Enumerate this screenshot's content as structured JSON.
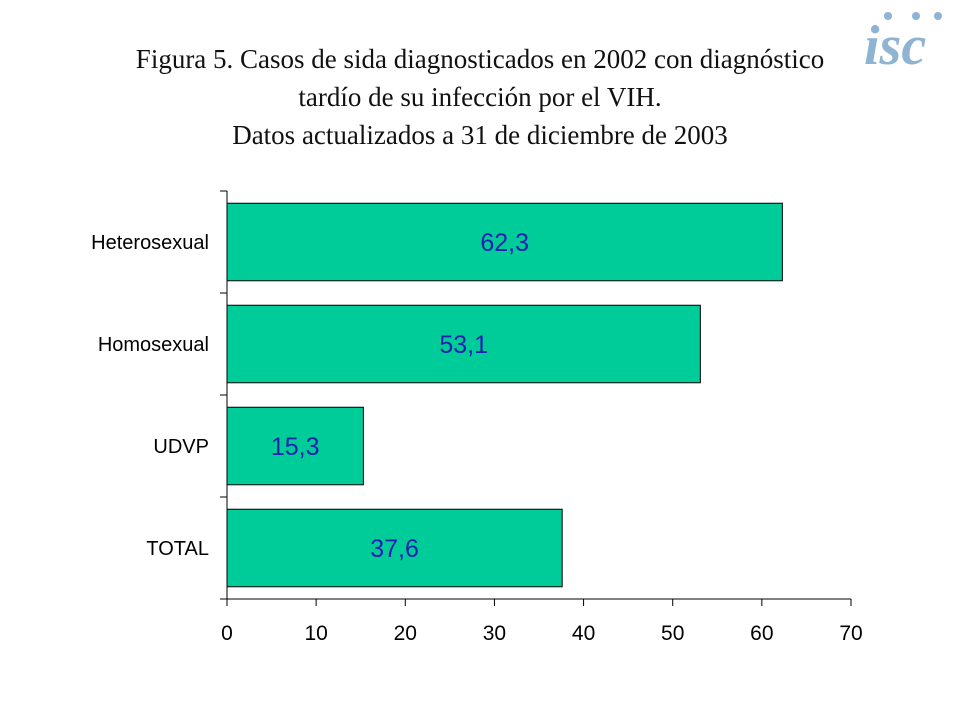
{
  "title_lines": [
    "Figura 5. Casos de sida diagnosticados en 2002 con diagnóstico",
    "tardío de su infección por el VIH.",
    "Datos actualizados a 31 de diciembre de 2003"
  ],
  "logo": {
    "text": "isc",
    "color": "#8fb3d3"
  },
  "colors": {
    "bar": "#00cc99",
    "bar_stroke": "#000000",
    "data_label": "#1f1fb0"
  },
  "chart_data": {
    "type": "bar",
    "orientation": "horizontal",
    "categories": [
      "Heterosexual",
      "Homosexual",
      "UDVP",
      "TOTAL"
    ],
    "values": [
      62.3,
      53.1,
      15.3,
      37.6
    ],
    "data_labels": [
      "62,3",
      "53,1",
      "15,3",
      "37,6"
    ],
    "xlim": [
      0,
      70
    ],
    "xticks": [
      0,
      10,
      20,
      30,
      40,
      50,
      60,
      70
    ],
    "xlabel": "",
    "ylabel": "",
    "grid": false,
    "legend": "none"
  }
}
